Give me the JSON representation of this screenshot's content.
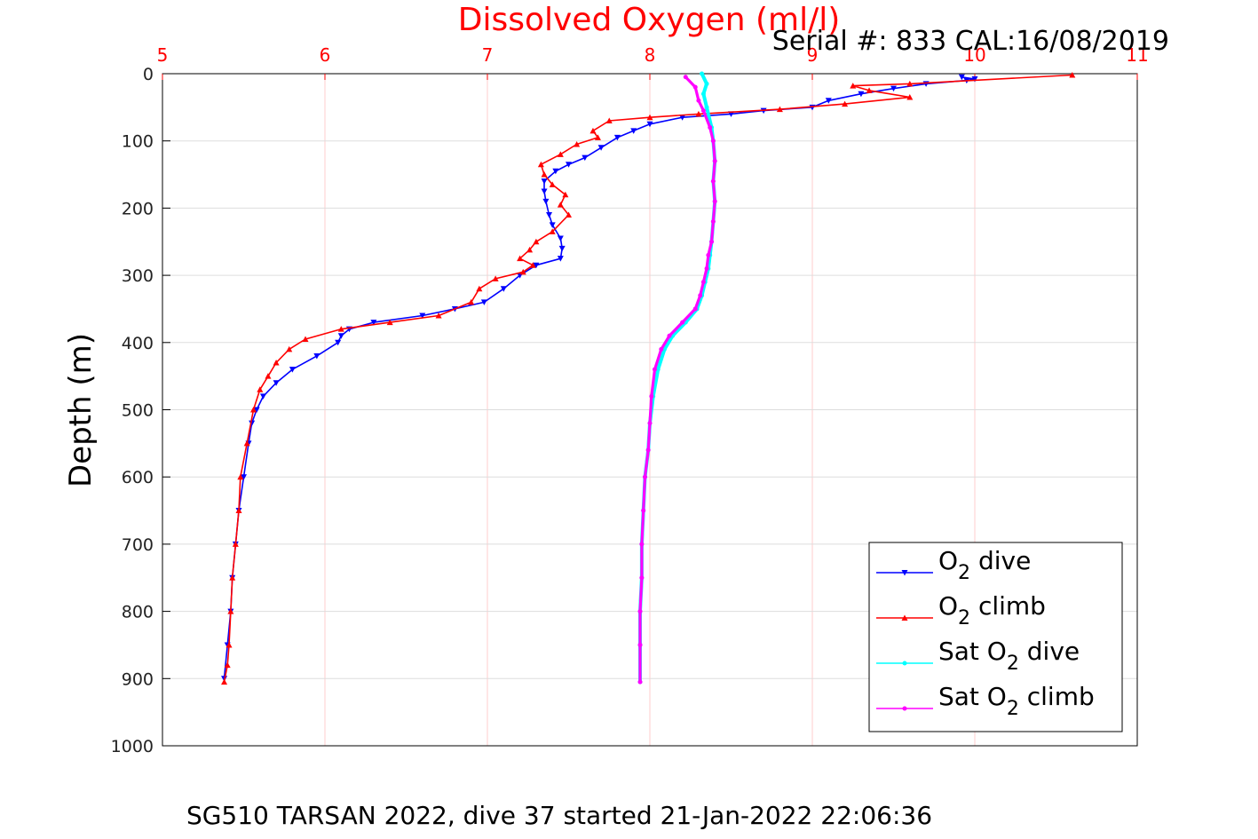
{
  "colors": {
    "top_axis": "#ff0000",
    "grid": "#dddddd",
    "grid_top": "#ffcccc",
    "o2_dive": "#0000ff",
    "o2_climb": "#ff0000",
    "sat_dive": "#00ffff",
    "sat_climb": "#ff00ff"
  },
  "chart_data": {
    "type": "line",
    "title": "Dissolved Oxygen (ml/l)",
    "subtitle": "Serial #: 833  CAL:16/08/2019",
    "footer": "SG510 TARSAN 2022, dive 37 started 21-Jan-2022 22:06:36",
    "xlabel": "",
    "ylabel": "Depth (m)",
    "xlim": [
      5,
      11
    ],
    "ylim": [
      0,
      1000
    ],
    "y_reversed": true,
    "x_axis_position": "top",
    "x_ticks": [
      "5",
      "6",
      "7",
      "8",
      "9",
      "10",
      "11"
    ],
    "y_ticks": [
      "0",
      "100",
      "200",
      "300",
      "400",
      "500",
      "600",
      "700",
      "800",
      "900",
      "1000"
    ],
    "grid": true,
    "legend_position": "bottom-right",
    "legend": [
      {
        "pre": "O",
        "sub": "2",
        "post": " dive"
      },
      {
        "pre": "O",
        "sub": "2",
        "post": " climb"
      },
      {
        "pre": "Sat O",
        "sub": "2",
        "post": " dive"
      },
      {
        "pre": "Sat O",
        "sub": "2",
        "post": " climb"
      }
    ],
    "series": [
      {
        "key": "o2_dive",
        "marker": "triangle-down",
        "points": [
          [
            9.92,
            5
          ],
          [
            10.0,
            8
          ],
          [
            9.95,
            10
          ],
          [
            9.7,
            15
          ],
          [
            9.5,
            22
          ],
          [
            9.3,
            30
          ],
          [
            9.1,
            40
          ],
          [
            9.0,
            50
          ],
          [
            8.7,
            55
          ],
          [
            8.5,
            60
          ],
          [
            8.2,
            65
          ],
          [
            8.0,
            75
          ],
          [
            7.9,
            85
          ],
          [
            7.8,
            95
          ],
          [
            7.7,
            110
          ],
          [
            7.6,
            125
          ],
          [
            7.5,
            135
          ],
          [
            7.42,
            145
          ],
          [
            7.35,
            160
          ],
          [
            7.35,
            175
          ],
          [
            7.36,
            190
          ],
          [
            7.38,
            210
          ],
          [
            7.4,
            225
          ],
          [
            7.45,
            245
          ],
          [
            7.46,
            260
          ],
          [
            7.45,
            275
          ],
          [
            7.3,
            285
          ],
          [
            7.2,
            300
          ],
          [
            7.1,
            320
          ],
          [
            6.98,
            340
          ],
          [
            6.8,
            350
          ],
          [
            6.6,
            360
          ],
          [
            6.3,
            370
          ],
          [
            6.15,
            380
          ],
          [
            6.1,
            390
          ],
          [
            6.08,
            400
          ],
          [
            5.95,
            420
          ],
          [
            5.8,
            440
          ],
          [
            5.7,
            460
          ],
          [
            5.62,
            480
          ],
          [
            5.58,
            500
          ],
          [
            5.55,
            520
          ],
          [
            5.53,
            550
          ],
          [
            5.5,
            600
          ],
          [
            5.47,
            650
          ],
          [
            5.45,
            700
          ],
          [
            5.43,
            750
          ],
          [
            5.42,
            800
          ],
          [
            5.4,
            850
          ],
          [
            5.38,
            900
          ]
        ]
      },
      {
        "key": "o2_climb",
        "marker": "triangle-up",
        "points": [
          [
            5.38,
            905
          ],
          [
            5.4,
            880
          ],
          [
            5.41,
            850
          ],
          [
            5.42,
            800
          ],
          [
            5.43,
            750
          ],
          [
            5.45,
            700
          ],
          [
            5.47,
            650
          ],
          [
            5.48,
            600
          ],
          [
            5.52,
            550
          ],
          [
            5.56,
            500
          ],
          [
            5.6,
            470
          ],
          [
            5.65,
            450
          ],
          [
            5.7,
            430
          ],
          [
            5.78,
            410
          ],
          [
            5.88,
            395
          ],
          [
            6.1,
            380
          ],
          [
            6.4,
            370
          ],
          [
            6.7,
            360
          ],
          [
            6.9,
            340
          ],
          [
            6.95,
            320
          ],
          [
            7.05,
            305
          ],
          [
            7.22,
            295
          ],
          [
            7.28,
            285
          ],
          [
            7.2,
            275
          ],
          [
            7.26,
            262
          ],
          [
            7.3,
            250
          ],
          [
            7.4,
            235
          ],
          [
            7.5,
            210
          ],
          [
            7.45,
            195
          ],
          [
            7.48,
            180
          ],
          [
            7.4,
            165
          ],
          [
            7.35,
            150
          ],
          [
            7.33,
            135
          ],
          [
            7.45,
            120
          ],
          [
            7.55,
            105
          ],
          [
            7.68,
            95
          ],
          [
            7.65,
            85
          ],
          [
            7.75,
            70
          ],
          [
            8.0,
            65
          ],
          [
            8.3,
            60
          ],
          [
            8.8,
            53
          ],
          [
            9.2,
            45
          ],
          [
            9.6,
            35
          ],
          [
            9.35,
            25
          ],
          [
            9.25,
            18
          ],
          [
            9.6,
            15
          ],
          [
            10.6,
            2
          ]
        ]
      },
      {
        "key": "sat_dive",
        "marker": "point",
        "points": [
          [
            8.32,
            0
          ],
          [
            8.35,
            15
          ],
          [
            8.33,
            30
          ],
          [
            8.35,
            50
          ],
          [
            8.38,
            80
          ],
          [
            8.39,
            100
          ],
          [
            8.4,
            130
          ],
          [
            8.39,
            160
          ],
          [
            8.4,
            190
          ],
          [
            8.39,
            220
          ],
          [
            8.38,
            250
          ],
          [
            8.37,
            270
          ],
          [
            8.36,
            290
          ],
          [
            8.34,
            310
          ],
          [
            8.32,
            330
          ],
          [
            8.29,
            350
          ],
          [
            8.22,
            370
          ],
          [
            8.14,
            390
          ],
          [
            8.09,
            410
          ],
          [
            8.05,
            440
          ],
          [
            8.02,
            480
          ],
          [
            8.0,
            520
          ],
          [
            7.99,
            560
          ],
          [
            7.97,
            600
          ],
          [
            7.96,
            650
          ],
          [
            7.95,
            700
          ],
          [
            7.95,
            750
          ],
          [
            7.94,
            800
          ],
          [
            7.94,
            850
          ],
          [
            7.94,
            905
          ]
        ]
      },
      {
        "key": "sat_climb",
        "marker": "point",
        "points": [
          [
            7.94,
            905
          ],
          [
            7.94,
            850
          ],
          [
            7.94,
            800
          ],
          [
            7.95,
            750
          ],
          [
            7.95,
            700
          ],
          [
            7.96,
            650
          ],
          [
            7.97,
            600
          ],
          [
            7.99,
            560
          ],
          [
            8.0,
            520
          ],
          [
            8.01,
            480
          ],
          [
            8.03,
            440
          ],
          [
            8.07,
            410
          ],
          [
            8.12,
            390
          ],
          [
            8.2,
            370
          ],
          [
            8.28,
            350
          ],
          [
            8.31,
            330
          ],
          [
            8.33,
            310
          ],
          [
            8.35,
            290
          ],
          [
            8.36,
            270
          ],
          [
            8.38,
            250
          ],
          [
            8.39,
            220
          ],
          [
            8.4,
            190
          ],
          [
            8.39,
            160
          ],
          [
            8.4,
            130
          ],
          [
            8.39,
            100
          ],
          [
            8.37,
            80
          ],
          [
            8.33,
            55
          ],
          [
            8.3,
            40
          ],
          [
            8.28,
            20
          ],
          [
            8.22,
            5
          ]
        ]
      }
    ]
  }
}
